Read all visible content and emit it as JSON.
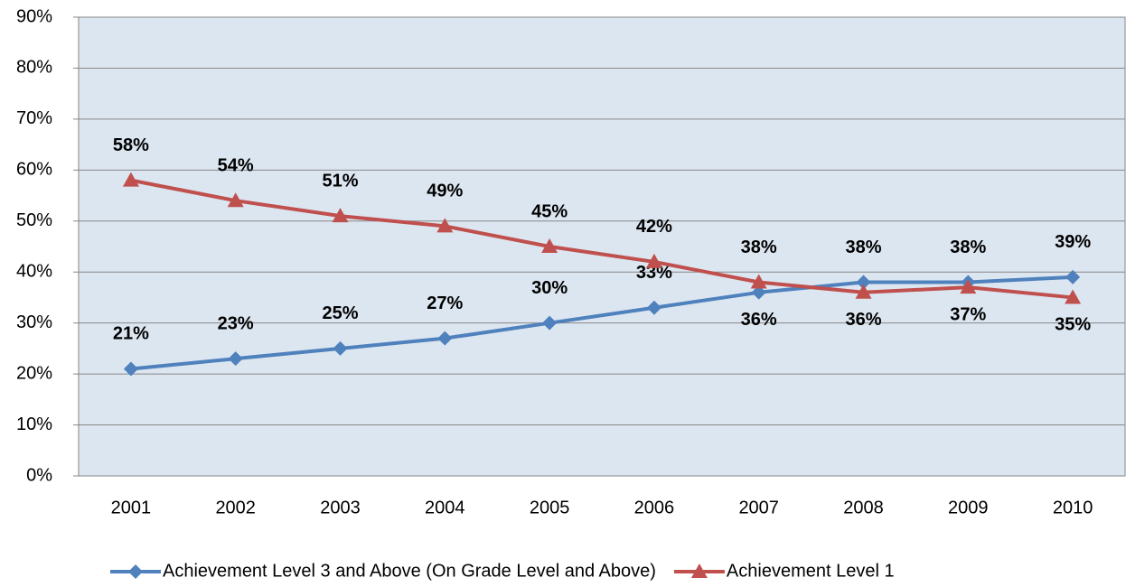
{
  "chart_data": {
    "type": "line",
    "categories": [
      "2001",
      "2002",
      "2003",
      "2004",
      "2005",
      "2006",
      "2007",
      "2008",
      "2009",
      "2010"
    ],
    "series": [
      {
        "name": "Achievement Level 3 and Above (On Grade Level and Above)",
        "color": "#4f81bd",
        "marker": "diamond",
        "values": [
          21,
          23,
          25,
          27,
          30,
          33,
          36,
          38,
          38,
          39
        ],
        "value_labels": [
          "21%",
          "23%",
          "25%",
          "27%",
          "30%",
          "33%",
          "36%",
          "38%",
          "38%",
          "39%"
        ]
      },
      {
        "name": "Achievement Level 1",
        "color": "#c0504d",
        "marker": "triangle",
        "values": [
          58,
          54,
          51,
          49,
          45,
          42,
          38,
          36,
          37,
          35
        ],
        "value_labels": [
          "58%",
          "54%",
          "51%",
          "49%",
          "45%",
          "42%",
          "38%",
          "36%",
          "37%",
          "35%"
        ]
      }
    ],
    "ylim": [
      0,
      90
    ],
    "yticks": [
      {
        "value": 0,
        "label": "0%"
      },
      {
        "value": 10,
        "label": "10%"
      },
      {
        "value": 20,
        "label": "20%"
      },
      {
        "value": 30,
        "label": "30%"
      },
      {
        "value": 40,
        "label": "40%"
      },
      {
        "value": 50,
        "label": "50%"
      },
      {
        "value": 60,
        "label": "60%"
      },
      {
        "value": 70,
        "label": "70%"
      },
      {
        "value": 80,
        "label": "80%"
      },
      {
        "value": 90,
        "label": "90%"
      }
    ],
    "grid": true,
    "legend": "bottom",
    "plot_background": "#dce6f1"
  }
}
